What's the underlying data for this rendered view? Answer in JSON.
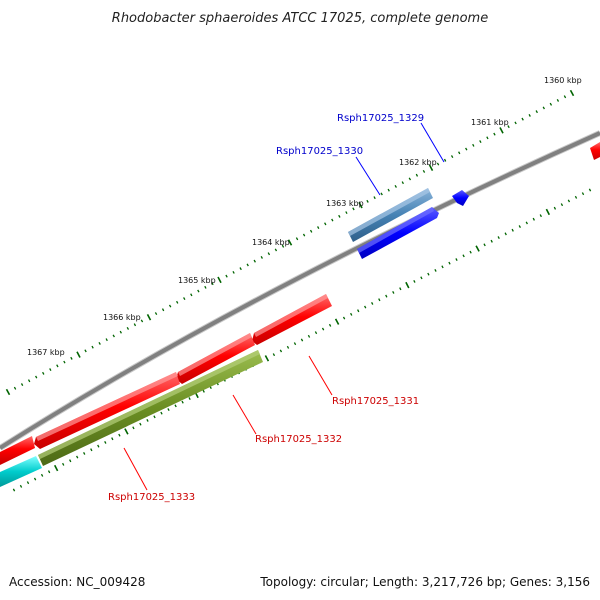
{
  "title": "Rhodobacter sphaeroides ATCC 17025, complete genome",
  "footer": {
    "accession": "Accession: NC_009428",
    "summary": "Topology: circular; Length: 3,217,726 bp; Genes: 3,156"
  },
  "ticks": [
    {
      "label": "1360 kbp"
    },
    {
      "label": "1361 kbp"
    },
    {
      "label": "1362 kbp"
    },
    {
      "label": "1363 kbp"
    },
    {
      "label": "1364 kbp"
    },
    {
      "label": "1365 kbp"
    },
    {
      "label": "1366 kbp"
    },
    {
      "label": "1367 kbp"
    }
  ],
  "genes": [
    {
      "name": "Rsph17025_1329",
      "strand": "plus",
      "color": "#0000cc"
    },
    {
      "name": "Rsph17025_1330",
      "strand": "plus",
      "color": "#0000cc"
    },
    {
      "name": "Rsph17025_1331",
      "strand": "minus",
      "color": "#cc0000"
    },
    {
      "name": "Rsph17025_1332",
      "strand": "minus",
      "color": "#cc0000"
    },
    {
      "name": "Rsph17025_1333",
      "strand": "minus",
      "color": "#cc0000"
    }
  ],
  "colors": {
    "backbone": "#808080",
    "tick": "#006400",
    "cds_red": "#ff0000",
    "cds_blue": "#0000ff",
    "cds_steel": "#4682b4",
    "cds_olive": "#6b8e23",
    "cds_cyan": "#00cccc"
  }
}
